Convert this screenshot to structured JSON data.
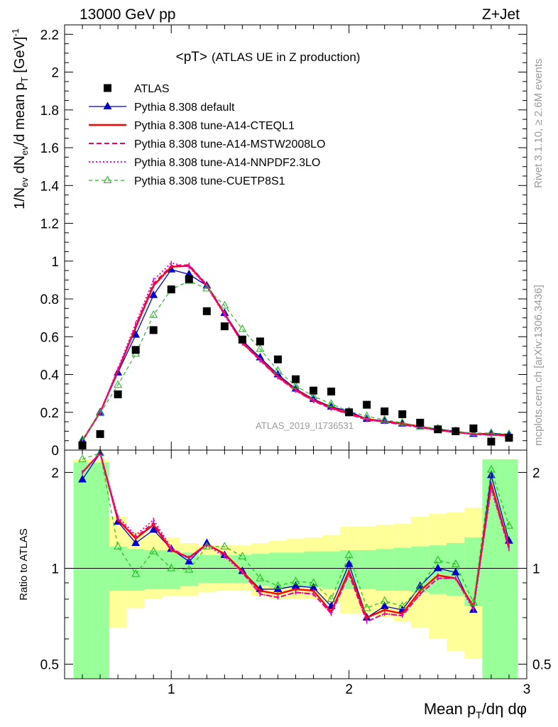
{
  "header": {
    "left": "13000 GeV pp",
    "right": "Z+Jet"
  },
  "side_labels": {
    "rivet": "Rivet 3.1.10, ≥ 2.6M events",
    "mcplots": "mcplots.cern.ch [arXiv:1306.3436]"
  },
  "colors": {
    "atlas": "#000000",
    "default": "#0000cc",
    "cteql1": "#ff0000",
    "mstw": "#ee0066",
    "nnpdf": "#ee00cc",
    "cuetp": "#22bb22",
    "band_inner": "#99ff99",
    "band_outer": "#ffff99",
    "watermark": "#999999"
  },
  "chart_data": [
    {
      "type": "line",
      "title": "<pT>",
      "subtitle": "(ATLAS UE in Z production)",
      "watermark": "ATLAS_2019_I1736531",
      "ylabel": "1/N_ev dN_ev/d mean p_T [GeV]^-1",
      "xlim": [
        0.4,
        3.0
      ],
      "ylim": [
        0,
        2.25
      ],
      "yticks": [
        0,
        0.2,
        0.4,
        0.6,
        0.8,
        1,
        1.2,
        1.4,
        1.6,
        1.8,
        2,
        2.2
      ],
      "ytick_labels": [
        "0",
        "0.2",
        "0.4",
        "0.6",
        "0.8",
        "1",
        "1.2",
        "1.4",
        "1.6",
        "1.8",
        "2",
        "2.2"
      ],
      "x": [
        0.5,
        0.6,
        0.7,
        0.8,
        0.9,
        1.0,
        1.1,
        1.2,
        1.3,
        1.4,
        1.5,
        1.6,
        1.7,
        1.8,
        1.9,
        2.0,
        2.1,
        2.2,
        2.3,
        2.4,
        2.5,
        2.6,
        2.7,
        2.8,
        2.9
      ],
      "series": [
        {
          "name": "ATLAS",
          "key": "atlas",
          "style": "data",
          "values": [
            0.025,
            0.085,
            0.295,
            0.53,
            0.635,
            0.85,
            0.905,
            0.735,
            0.655,
            0.585,
            0.575,
            0.48,
            0.375,
            0.315,
            0.31,
            0.2,
            0.24,
            0.205,
            0.19,
            0.145,
            0.11,
            0.1,
            0.115,
            0.045,
            0.065
          ]
        },
        {
          "name": "Pythia 8.308 default",
          "key": "default",
          "style": "solid-tri",
          "values": [
            0.05,
            0.2,
            0.41,
            0.61,
            0.82,
            0.955,
            0.93,
            0.87,
            0.725,
            0.58,
            0.49,
            0.4,
            0.325,
            0.27,
            0.23,
            0.205,
            0.165,
            0.155,
            0.14,
            0.125,
            0.11,
            0.1,
            0.085,
            0.09,
            0.08
          ]
        },
        {
          "name": "Pythia 8.308 tune-A14-CTEQL1",
          "key": "cteql1",
          "style": "solid",
          "values": [
            0.05,
            0.2,
            0.42,
            0.65,
            0.87,
            0.97,
            0.975,
            0.87,
            0.72,
            0.57,
            0.48,
            0.39,
            0.32,
            0.265,
            0.225,
            0.195,
            0.165,
            0.15,
            0.14,
            0.125,
            0.105,
            0.095,
            0.085,
            0.085,
            0.075
          ]
        },
        {
          "name": "Pythia 8.308 tune-A14-MSTW2008LO",
          "key": "mstw",
          "style": "dash",
          "values": [
            0.05,
            0.2,
            0.42,
            0.66,
            0.88,
            0.975,
            0.98,
            0.875,
            0.725,
            0.565,
            0.475,
            0.385,
            0.315,
            0.26,
            0.22,
            0.19,
            0.16,
            0.15,
            0.135,
            0.12,
            0.105,
            0.095,
            0.085,
            0.08,
            0.075
          ]
        },
        {
          "name": "Pythia 8.308 tune-A14-NNPDF2.3LO",
          "key": "nnpdf",
          "style": "dot",
          "values": [
            0.05,
            0.2,
            0.43,
            0.67,
            0.9,
            0.99,
            0.97,
            0.865,
            0.715,
            0.565,
            0.475,
            0.385,
            0.315,
            0.26,
            0.22,
            0.19,
            0.16,
            0.15,
            0.135,
            0.12,
            0.105,
            0.095,
            0.085,
            0.08,
            0.075
          ]
        },
        {
          "name": "Pythia 8.308 tune-CUETP8S1",
          "key": "cuetp",
          "style": "dash-tri-open",
          "values": [
            0.055,
            0.195,
            0.345,
            0.51,
            0.715,
            0.85,
            0.895,
            0.855,
            0.765,
            0.64,
            0.535,
            0.42,
            0.34,
            0.285,
            0.245,
            0.205,
            0.18,
            0.16,
            0.145,
            0.125,
            0.115,
            0.1,
            0.09,
            0.09,
            0.085
          ]
        }
      ]
    },
    {
      "type": "line",
      "ylabel": "Ratio to ATLAS",
      "xlabel": "Mean p_T/dη dφ",
      "xlim": [
        0.4,
        3.0
      ],
      "ylim": [
        0.45,
        2.35
      ],
      "log_y": true,
      "xticks": [
        1,
        2,
        3
      ],
      "xtick_labels": [
        "1",
        "2",
        "3"
      ],
      "yticks": [
        0.5,
        1,
        2
      ],
      "ytick_labels": [
        "0.5",
        "1",
        "2"
      ],
      "x": [
        0.5,
        0.6,
        0.7,
        0.8,
        0.9,
        1.0,
        1.1,
        1.2,
        1.3,
        1.4,
        1.5,
        1.6,
        1.7,
        1.8,
        1.9,
        2.0,
        2.1,
        2.2,
        2.3,
        2.4,
        2.5,
        2.6,
        2.7,
        2.8,
        2.9
      ],
      "band_inner": {
        "lo": [
          0.3,
          0.3,
          0.85,
          0.85,
          0.86,
          0.86,
          0.88,
          0.9,
          0.9,
          0.9,
          0.88,
          0.87,
          0.87,
          0.87,
          0.86,
          0.86,
          0.86,
          0.85,
          0.85,
          0.84,
          0.83,
          0.82,
          0.76,
          0.4,
          0.3
        ],
        "hi": [
          2.15,
          2.15,
          1.17,
          1.15,
          1.14,
          1.14,
          1.12,
          1.1,
          1.1,
          1.1,
          1.11,
          1.12,
          1.12,
          1.13,
          1.13,
          1.14,
          1.14,
          1.15,
          1.16,
          1.17,
          1.18,
          1.2,
          1.25,
          2.2,
          2.2
        ]
      },
      "band_outer": {
        "lo": [
          0.3,
          0.3,
          0.65,
          0.75,
          0.8,
          0.82,
          0.82,
          0.84,
          0.85,
          0.85,
          0.82,
          0.8,
          0.8,
          0.8,
          0.78,
          0.72,
          0.72,
          0.7,
          0.68,
          0.65,
          0.6,
          0.55,
          0.52,
          0.4,
          0.3
        ],
        "hi": [
          2.2,
          2.2,
          1.45,
          1.3,
          1.28,
          1.25,
          1.2,
          1.18,
          1.18,
          1.18,
          1.2,
          1.22,
          1.24,
          1.25,
          1.27,
          1.35,
          1.35,
          1.37,
          1.38,
          1.45,
          1.48,
          1.5,
          1.55,
          2.2,
          2.2
        ]
      },
      "series": [
        {
          "name": "Pythia 8.308 default",
          "key": "default",
          "style": "solid-tri",
          "values": [
            1.9,
            2.3,
            1.4,
            1.2,
            1.32,
            1.15,
            1.05,
            1.2,
            1.1,
            0.98,
            0.86,
            0.86,
            0.88,
            0.87,
            0.76,
            1.03,
            0.7,
            0.76,
            0.74,
            0.88,
            1.0,
            0.97,
            0.74,
            1.96,
            1.22
          ]
        },
        {
          "name": "Pythia 8.308 tune-A14-CTEQL1",
          "key": "cteql1",
          "style": "solid",
          "values": [
            2.0,
            2.3,
            1.42,
            1.24,
            1.37,
            1.14,
            1.08,
            1.19,
            1.11,
            0.98,
            0.85,
            0.83,
            0.86,
            0.85,
            0.73,
            0.98,
            0.7,
            0.74,
            0.72,
            0.85,
            0.95,
            0.93,
            0.76,
            1.84,
            1.17
          ]
        },
        {
          "name": "Pythia 8.308 tune-A14-MSTW2008LO",
          "key": "mstw",
          "style": "dash",
          "values": [
            2.0,
            2.3,
            1.43,
            1.25,
            1.39,
            1.15,
            1.08,
            1.19,
            1.11,
            0.97,
            0.83,
            0.81,
            0.84,
            0.83,
            0.72,
            0.96,
            0.68,
            0.72,
            0.71,
            0.83,
            0.93,
            0.93,
            0.75,
            1.8,
            1.15
          ]
        },
        {
          "name": "Pythia 8.308 tune-A14-NNPDF2.3LO",
          "key": "nnpdf",
          "style": "dot",
          "values": [
            2.0,
            2.3,
            1.45,
            1.27,
            1.42,
            1.16,
            1.07,
            1.18,
            1.09,
            0.97,
            0.83,
            0.81,
            0.84,
            0.83,
            0.72,
            0.96,
            0.68,
            0.72,
            0.71,
            0.83,
            0.93,
            0.93,
            0.74,
            1.78,
            1.15
          ]
        },
        {
          "name": "Pythia 8.308 tune-CUETP8S1",
          "key": "cuetp",
          "style": "dash-tri-open",
          "values": [
            2.2,
            2.3,
            1.17,
            0.96,
            1.13,
            1.0,
            0.99,
            1.17,
            1.17,
            1.09,
            0.93,
            0.88,
            0.91,
            0.9,
            0.8,
            1.1,
            0.75,
            0.79,
            0.76,
            0.87,
            1.06,
            1.03,
            0.78,
            2.04,
            1.36
          ]
        }
      ]
    }
  ]
}
